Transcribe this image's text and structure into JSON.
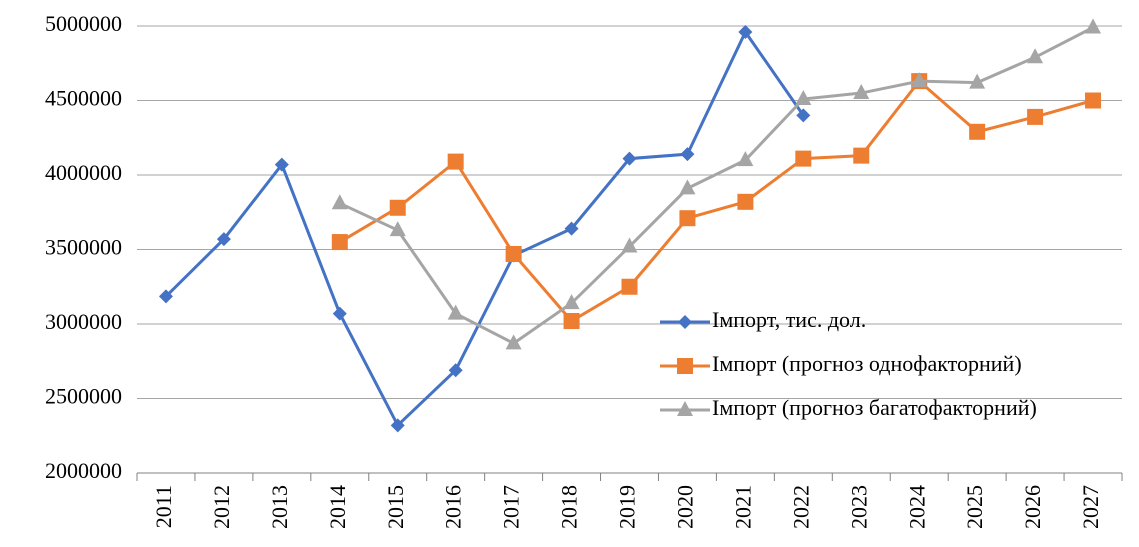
{
  "chart_data": {
    "type": "line",
    "categories": [
      "2011",
      "2012",
      "2013",
      "2014",
      "2015",
      "2016",
      "2017",
      "2018",
      "2019",
      "2020",
      "2021",
      "2022",
      "2023",
      "2024",
      "2025",
      "2026",
      "2027"
    ],
    "series": [
      {
        "name": "Імпорт, тис. дол.",
        "color": "#4472c4",
        "marker": "diamond",
        "values": [
          3185000,
          3570000,
          4070000,
          3070000,
          2320000,
          2690000,
          3460000,
          3640000,
          4110000,
          4140000,
          4960000,
          4400000,
          null,
          null,
          null,
          null,
          null
        ]
      },
      {
        "name": "Імпорт (прогноз однофакторний)",
        "color": "#ed7d31",
        "marker": "square",
        "values": [
          null,
          null,
          null,
          3550000,
          3780000,
          4090000,
          3470000,
          3020000,
          3250000,
          3710000,
          3820000,
          4110000,
          4130000,
          4630000,
          4290000,
          4390000,
          4500000
        ]
      },
      {
        "name": "Імпорт (прогноз багатофакторний)",
        "color": "#a5a5a5",
        "marker": "triangle",
        "values": [
          null,
          null,
          null,
          3810000,
          3630000,
          3070000,
          2870000,
          3140000,
          3520000,
          3910000,
          4100000,
          4510000,
          4550000,
          4630000,
          4620000,
          4790000,
          4990000
        ]
      }
    ],
    "ylim": [
      2000000,
      5000000
    ],
    "yticks": [
      2000000,
      2500000,
      3000000,
      3500000,
      4000000,
      4500000,
      5000000
    ],
    "grid": true,
    "legend": "right"
  }
}
